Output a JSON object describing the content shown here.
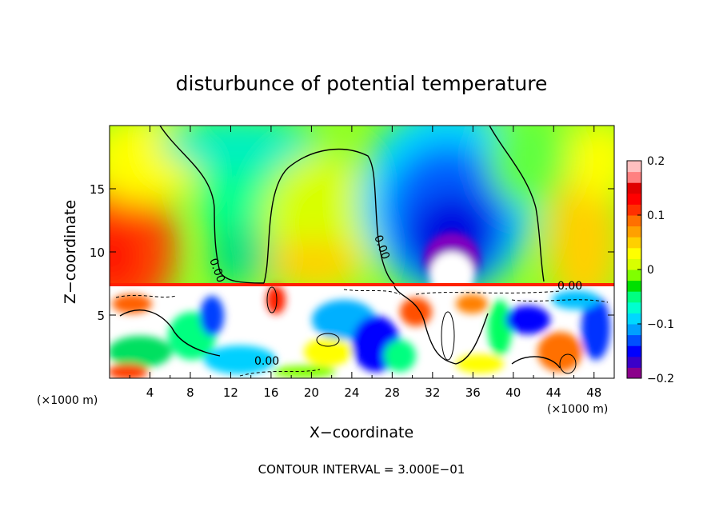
{
  "chart_data": {
    "type": "heatmap",
    "title": "disturbunce of potential temperature",
    "xlabel": "X−coordinate",
    "ylabel": "Z−coordinate",
    "x_unit": "(×1000 m)",
    "z_unit": "(×1000 m)",
    "xlim": [
      0,
      50
    ],
    "ylim": [
      0,
      20
    ],
    "x_ticks": [
      4,
      8,
      12,
      16,
      20,
      24,
      28,
      32,
      36,
      40,
      44,
      48
    ],
    "y_ticks": [
      5,
      10,
      15
    ],
    "colorbar": {
      "range": [
        -0.2,
        0.2
      ],
      "ticks": [
        0.2,
        0.1,
        0,
        -0.1,
        -0.2
      ],
      "tick_labels": [
        "0.2",
        "0.1",
        "0",
        "−0.1",
        "−0.2"
      ],
      "colors": [
        "#8b008b",
        "#3a00c8",
        "#0000ff",
        "#0050ff",
        "#00a0ff",
        "#00d8ff",
        "#00ffd0",
        "#00ff80",
        "#00e000",
        "#80ff00",
        "#d8ff00",
        "#ffff00",
        "#ffd000",
        "#ffa000",
        "#ff7000",
        "#ff3000",
        "#ff0000",
        "#e00000",
        "#ff8080",
        "#ffc0c0"
      ]
    },
    "contour_label": "0.00",
    "footer": "CONTOUR INTERVAL = 3.000E−01",
    "grid": false
  }
}
